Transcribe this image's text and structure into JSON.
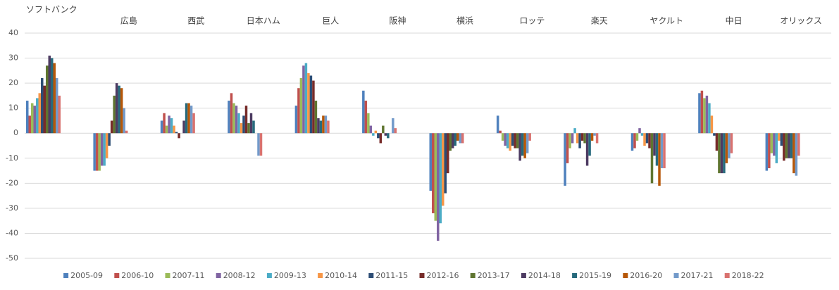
{
  "chart_data": {
    "type": "bar",
    "categories": [
      "ソフトバンク",
      "広島",
      "西武",
      "日本ハム",
      "巨人",
      "阪神",
      "横浜",
      "ロッテ",
      "楽天",
      "ヤクルト",
      "中日",
      "オリックス"
    ],
    "ylim": [
      -50,
      40
    ],
    "yticks": [
      -50,
      -40,
      -30,
      -20,
      -10,
      0,
      10,
      20,
      30,
      40
    ],
    "grid": true,
    "series": [
      {
        "name": "2005-09",
        "color": "#4f81bd",
        "values": [
          13,
          -15,
          5,
          13,
          11,
          17,
          -23,
          7,
          -21,
          -7,
          16,
          -15
        ]
      },
      {
        "name": "2006-10",
        "color": "#c0504d",
        "values": [
          7,
          -15,
          8,
          16,
          18,
          13,
          -32,
          1,
          -12,
          -6,
          17,
          -14
        ]
      },
      {
        "name": "2007-11",
        "color": "#9bbb59",
        "values": [
          12,
          -15,
          3,
          12,
          22,
          8,
          -35,
          -3,
          -6,
          -3,
          14,
          -8
        ]
      },
      {
        "name": "2008-12",
        "color": "#8064a2",
        "values": [
          11,
          -13,
          7,
          11,
          27,
          3,
          -43,
          -5,
          -4,
          2,
          15,
          -9
        ]
      },
      {
        "name": "2009-13",
        "color": "#4bacc6",
        "values": [
          14,
          -13,
          6,
          8,
          28,
          -1,
          -36,
          -6,
          2,
          -1,
          12,
          -12
        ]
      },
      {
        "name": "2010-14",
        "color": "#f79646",
        "values": [
          16,
          -10,
          3,
          4,
          24,
          1,
          -29,
          -7,
          -4,
          -5,
          7,
          -3
        ]
      },
      {
        "name": "2011-15",
        "color": "#2c4d75",
        "values": [
          22,
          -5,
          0.5,
          7,
          23,
          -2,
          -24,
          -5,
          -6,
          -4,
          -1,
          -5
        ]
      },
      {
        "name": "2012-16",
        "color": "#772c2a",
        "values": [
          19,
          5,
          -2,
          11,
          21,
          -4,
          -16,
          -6,
          -3,
          -6,
          -7,
          -11
        ]
      },
      {
        "name": "2013-17",
        "color": "#5f7530",
        "values": [
          27,
          15,
          0,
          4,
          13,
          3,
          -7,
          -6,
          -4,
          -20,
          -16,
          -10
        ]
      },
      {
        "name": "2014-18",
        "color": "#4d3b62",
        "values": [
          31,
          20,
          5,
          8,
          6,
          -1,
          -6,
          -11,
          -13,
          -9,
          -16,
          -10
        ]
      },
      {
        "name": "2015-19",
        "color": "#276a7c",
        "values": [
          30,
          19,
          12,
          5,
          5,
          -2,
          -5,
          -9,
          -9,
          -13,
          -16,
          -10
        ]
      },
      {
        "name": "2016-20",
        "color": "#b65708",
        "values": [
          28,
          18,
          12,
          0,
          7,
          0,
          -3,
          -10,
          -3,
          -21,
          -12,
          -16
        ]
      },
      {
        "name": "2017-21",
        "color": "#729aca",
        "values": [
          22,
          10,
          11,
          -9,
          7,
          6,
          -4,
          -8,
          -1,
          -14,
          -10,
          -17
        ]
      },
      {
        "name": "2018-22",
        "color": "#d9726f",
        "values": [
          15,
          1,
          8,
          -9,
          5,
          2,
          -4,
          -3,
          -4,
          -14,
          -8,
          -9
        ]
      }
    ]
  }
}
